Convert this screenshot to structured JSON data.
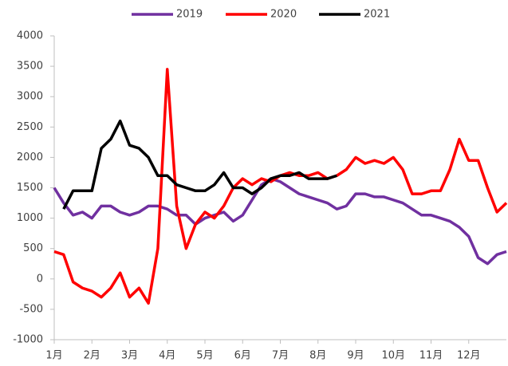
{
  "chart_data": {
    "type": "line",
    "x": [
      1,
      1.25,
      1.5,
      1.75,
      2,
      2.25,
      2.5,
      2.75,
      3,
      3.25,
      3.5,
      3.75,
      4,
      4.25,
      4.5,
      4.75,
      5,
      5.25,
      5.5,
      5.75,
      6,
      6.25,
      6.5,
      6.75,
      7,
      7.25,
      7.5,
      7.75,
      8,
      8.25,
      8.5,
      8.75,
      9,
      9.25,
      9.5,
      9.75,
      10,
      10.25,
      10.5,
      10.75,
      11,
      11.25,
      11.5,
      11.75,
      12,
      12.25,
      12.5,
      12.75,
      13
    ],
    "series": [
      {
        "name": "2019",
        "color": "#7030a0",
        "values": [
          1500,
          1250,
          1050,
          1100,
          1000,
          1200,
          1200,
          1100,
          1050,
          1100,
          1200,
          1200,
          1150,
          1050,
          1050,
          900,
          1000,
          1050,
          1100,
          950,
          1050,
          1300,
          1550,
          1650,
          1600,
          1500,
          1400,
          1350,
          1300,
          1250,
          1150,
          1200,
          1400,
          1400,
          1350,
          1350,
          1300,
          1250,
          1150,
          1050,
          1050,
          1000,
          950,
          850,
          700,
          350,
          250,
          400,
          450
        ]
      },
      {
        "name": "2020",
        "color": "#ff0000",
        "values": [
          450,
          400,
          -50,
          -150,
          -200,
          -300,
          -150,
          100,
          -300,
          -150,
          -400,
          500,
          3450,
          1200,
          500,
          900,
          1100,
          1000,
          1200,
          1500,
          1650,
          1550,
          1650,
          1600,
          1700,
          1750,
          1700,
          1700,
          1750,
          1650,
          1700,
          1800,
          2000,
          1900,
          1950,
          1900,
          2000,
          1800,
          1400,
          1400,
          1450,
          1450,
          1800,
          2300,
          1950,
          1950,
          1500,
          1100,
          1250
        ]
      },
      {
        "name": "2021",
        "color": "#000000",
        "values": [
          null,
          1150,
          1450,
          1450,
          1450,
          2150,
          2300,
          2600,
          2200,
          2150,
          2000,
          1700,
          1700,
          1550,
          1500,
          1450,
          1450,
          1550,
          1750,
          1500,
          1500,
          1400,
          1500,
          1650,
          1700,
          1700,
          1750,
          1650,
          1650,
          1650,
          1700,
          null,
          null,
          null,
          null,
          null,
          null,
          null,
          null,
          null,
          null,
          null,
          null,
          null,
          null,
          null,
          null,
          null,
          null
        ]
      }
    ],
    "xlim": [
      1,
      13
    ],
    "xticks": [
      {
        "value": 1,
        "label": "1月"
      },
      {
        "value": 2,
        "label": "2月"
      },
      {
        "value": 3,
        "label": "3月"
      },
      {
        "value": 4,
        "label": "4月"
      },
      {
        "value": 5,
        "label": "5月"
      },
      {
        "value": 6,
        "label": "6月"
      },
      {
        "value": 7,
        "label": "7月"
      },
      {
        "value": 8,
        "label": "8月"
      },
      {
        "value": 9,
        "label": "9月"
      },
      {
        "value": 10,
        "label": "10月"
      },
      {
        "value": 11,
        "label": "11月"
      },
      {
        "value": 12,
        "label": "12月"
      }
    ],
    "ylim": [
      -1000,
      4000
    ],
    "yticks": [
      -1000,
      -500,
      0,
      500,
      1000,
      1500,
      2000,
      2500,
      3000,
      3500,
      4000
    ]
  }
}
